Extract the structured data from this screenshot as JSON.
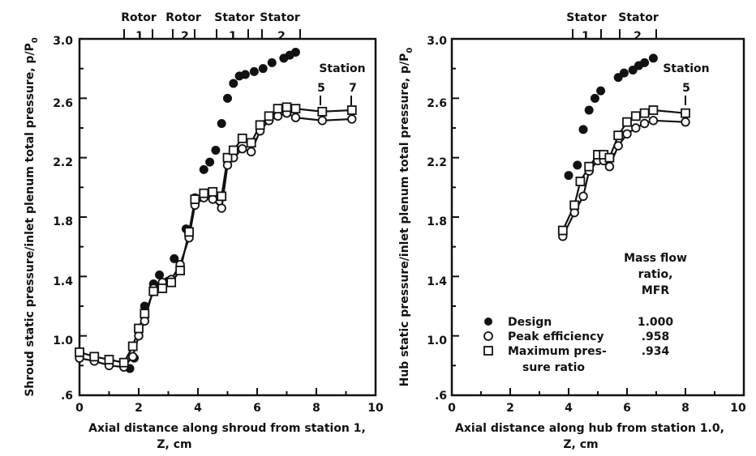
{
  "chart_data": [
    {
      "type": "scatter",
      "xlabel_line1": "Axial distance along shroud from station 1,",
      "xlabel_line2": "Z, cm",
      "ylabel": "Shroud static pressure/inlet plenum total pressure, p/P",
      "ylabel_sub": "0",
      "xlim": [
        0,
        10
      ],
      "ylim": [
        0.6,
        3.0
      ],
      "xticks": [
        "0",
        "2",
        "4",
        "6",
        "8",
        "10"
      ],
      "yticks": [
        ".6",
        "1.0",
        "1.4",
        "1.8",
        "2.2",
        "2.6",
        "3.0"
      ],
      "header_labels": [
        "Rotor",
        "Rotor",
        "Stator",
        "Stator"
      ],
      "row_labels": [
        "1",
        "2",
        "1",
        "2"
      ],
      "station_title": "Station",
      "station_labels": [
        "5",
        "7"
      ],
      "series": [
        {
          "key": "design",
          "marker": "filled-circle",
          "line": false,
          "x": [
            0,
            0.5,
            1.0,
            1.5,
            1.7,
            1.85,
            2.0,
            2.2,
            2.5,
            2.7,
            3.0,
            3.2,
            3.6,
            3.9,
            4.2,
            4.4,
            4.6,
            4.8,
            5.0,
            5.2,
            5.4,
            5.6,
            5.9,
            6.2,
            6.5,
            6.9,
            7.1,
            7.3
          ],
          "y": [
            0.87,
            0.85,
            0.82,
            0.8,
            0.78,
            0.85,
            1.0,
            1.2,
            1.35,
            1.41,
            1.37,
            1.52,
            1.72,
            1.93,
            2.12,
            2.17,
            2.25,
            2.43,
            2.6,
            2.7,
            2.75,
            2.76,
            2.78,
            2.8,
            2.84,
            2.87,
            2.89,
            2.91
          ]
        },
        {
          "key": "peak",
          "marker": "open-circle",
          "line": true,
          "x": [
            0,
            0.5,
            1.0,
            1.5,
            1.8,
            2.0,
            2.2,
            2.5,
            2.8,
            3.1,
            3.4,
            3.7,
            3.9,
            4.2,
            4.5,
            4.8,
            5.0,
            5.2,
            5.5,
            5.8,
            6.1,
            6.4,
            6.7,
            7.0,
            7.3,
            8.2,
            9.2
          ],
          "y": [
            0.85,
            0.83,
            0.8,
            0.79,
            0.86,
            1.0,
            1.1,
            1.32,
            1.36,
            1.38,
            1.48,
            1.66,
            1.88,
            1.93,
            1.92,
            1.86,
            2.15,
            2.2,
            2.26,
            2.24,
            2.38,
            2.45,
            2.48,
            2.5,
            2.47,
            2.45,
            2.46
          ]
        },
        {
          "key": "max",
          "marker": "open-square",
          "line": true,
          "x": [
            0,
            0.5,
            1.0,
            1.5,
            1.8,
            2.0,
            2.2,
            2.5,
            2.8,
            3.1,
            3.4,
            3.7,
            3.9,
            4.2,
            4.5,
            4.8,
            5.0,
            5.2,
            5.5,
            5.8,
            6.1,
            6.4,
            6.7,
            7.0,
            7.3,
            8.2,
            9.2
          ],
          "y": [
            0.89,
            0.86,
            0.84,
            0.82,
            0.93,
            1.05,
            1.15,
            1.3,
            1.32,
            1.36,
            1.44,
            1.7,
            1.92,
            1.96,
            1.97,
            1.94,
            2.2,
            2.25,
            2.33,
            2.3,
            2.42,
            2.48,
            2.53,
            2.54,
            2.53,
            2.51,
            2.52
          ]
        }
      ]
    },
    {
      "type": "scatter",
      "xlabel_line1": "Axial distance along hub from station 1.0,",
      "xlabel_line2": "Z, cm",
      "ylabel": "Hub static pressure/inlet plenum total pressure, p/P",
      "ylabel_sub": "0",
      "xlim": [
        0,
        10
      ],
      "ylim": [
        0.6,
        3.0
      ],
      "xticks": [
        "0",
        "2",
        "4",
        "6",
        "8",
        "10"
      ],
      "yticks": [
        ".6",
        "1.0",
        "1.4",
        "1.8",
        "2.2",
        "2.6",
        "3.0"
      ],
      "header_labels": [
        "Stator",
        "Stator"
      ],
      "row_labels": [
        "1",
        "2"
      ],
      "station_title": "Station",
      "station_labels": [
        "5"
      ],
      "legend": {
        "heading_lines": [
          "Mass flow",
          "ratio,",
          "MFR"
        ],
        "entries": [
          {
            "marker": "filled-circle",
            "lines": [
              "Design"
            ],
            "value": "1.000"
          },
          {
            "marker": "open-circle",
            "lines": [
              "Peak efficiency"
            ],
            "value": ".958"
          },
          {
            "marker": "open-square",
            "lines": [
              "Maximum pres-",
              "sure ratio"
            ],
            "value": ".934"
          }
        ]
      },
      "series": [
        {
          "key": "design",
          "marker": "filled-circle",
          "line": false,
          "x": [
            4.0,
            4.3,
            4.5,
            4.7,
            4.9,
            5.1,
            5.7,
            5.9,
            6.2,
            6.4,
            6.6,
            6.9
          ],
          "y": [
            2.08,
            2.15,
            2.39,
            2.52,
            2.6,
            2.65,
            2.74,
            2.77,
            2.79,
            2.82,
            2.84,
            2.87
          ]
        },
        {
          "key": "peak",
          "marker": "open-circle",
          "line": true,
          "x": [
            3.8,
            4.2,
            4.5,
            4.7,
            5.0,
            5.2,
            5.4,
            5.7,
            6.0,
            6.3,
            6.6,
            6.9,
            8.0
          ],
          "y": [
            1.67,
            1.83,
            1.94,
            2.11,
            2.18,
            2.18,
            2.14,
            2.28,
            2.36,
            2.4,
            2.43,
            2.45,
            2.44
          ]
        },
        {
          "key": "max",
          "marker": "open-square",
          "line": true,
          "x": [
            3.8,
            4.2,
            4.4,
            4.7,
            5.0,
            5.2,
            5.4,
            5.7,
            6.0,
            6.3,
            6.6,
            6.9,
            8.0
          ],
          "y": [
            1.71,
            1.88,
            2.04,
            2.14,
            2.22,
            2.22,
            2.2,
            2.35,
            2.44,
            2.48,
            2.5,
            2.52,
            2.5
          ]
        }
      ]
    }
  ]
}
